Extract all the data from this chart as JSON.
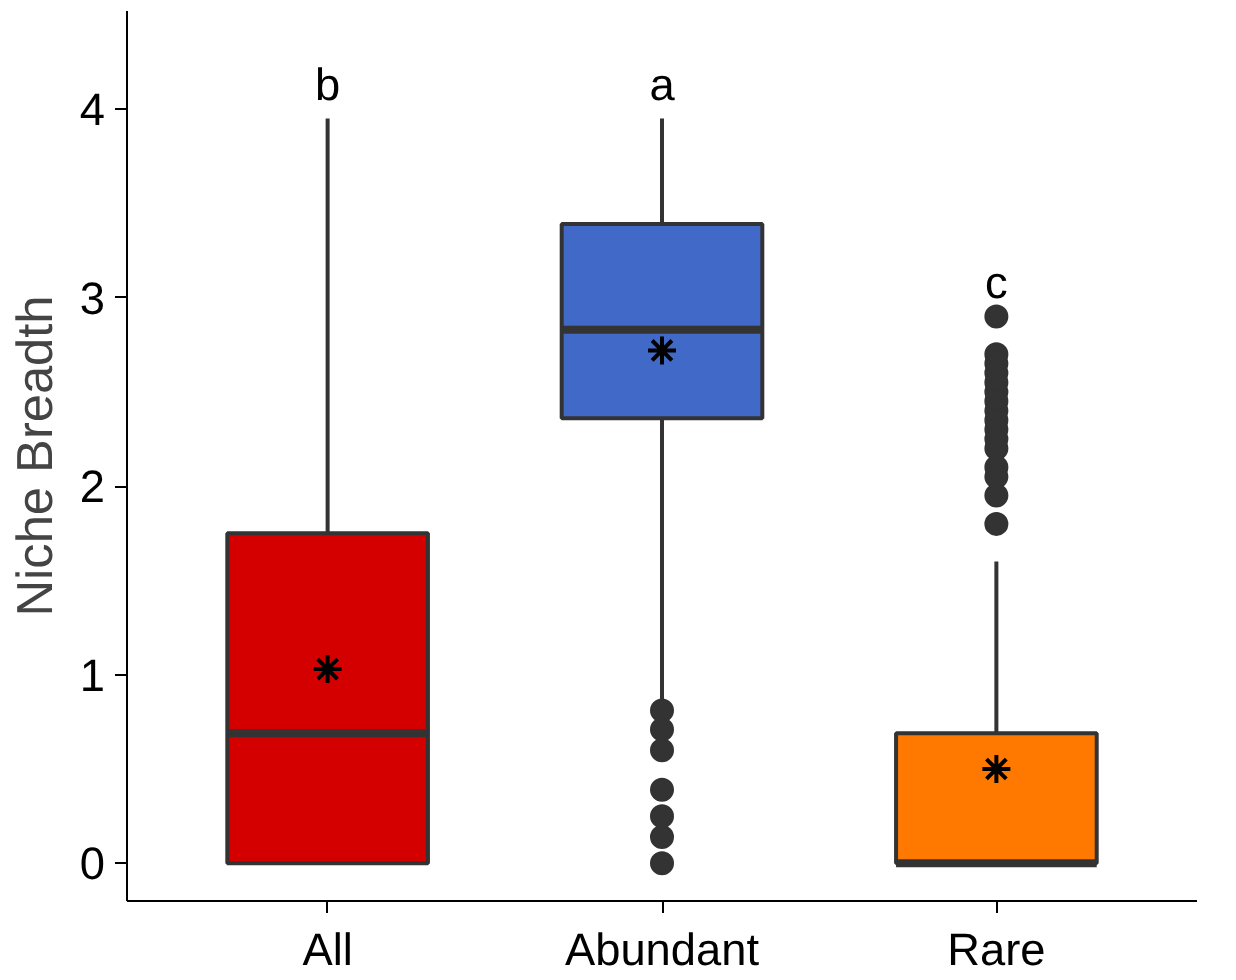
{
  "chart_data": {
    "type": "box",
    "ylabel": "Niche Breadth",
    "categories": [
      "All",
      "Abundant",
      "Rare"
    ],
    "colors": [
      "#d40000",
      "#4169c8",
      "#ff7800"
    ],
    "boxes": [
      {
        "low": 0,
        "q1": 0,
        "median": 0.69,
        "q3": 1.75,
        "high": 3.95,
        "mean": 1.03
      },
      {
        "low": 0.85,
        "q1": 2.36,
        "median": 2.83,
        "q3": 3.39,
        "high": 3.95,
        "mean": 2.72,
        "outliers": [
          0.81,
          0.71,
          0.6,
          0.39,
          0.25,
          0.14,
          0
        ]
      },
      {
        "low": 0,
        "q1": 0,
        "median": 0,
        "q3": 0.69,
        "high": 1.6,
        "mean": 0.5,
        "outliers": [
          2.9,
          2.7,
          2.65,
          2.6,
          2.55,
          2.5,
          2.45,
          2.4,
          2.35,
          2.3,
          2.25,
          2.2,
          2.1,
          2.05,
          1.95,
          1.8
        ]
      }
    ],
    "annotations": [
      "b",
      "a",
      "c"
    ],
    "ylim": [
      -0.2,
      4.52
    ],
    "yticks": [
      0,
      1,
      2,
      3,
      4
    ],
    "grid": false
  }
}
